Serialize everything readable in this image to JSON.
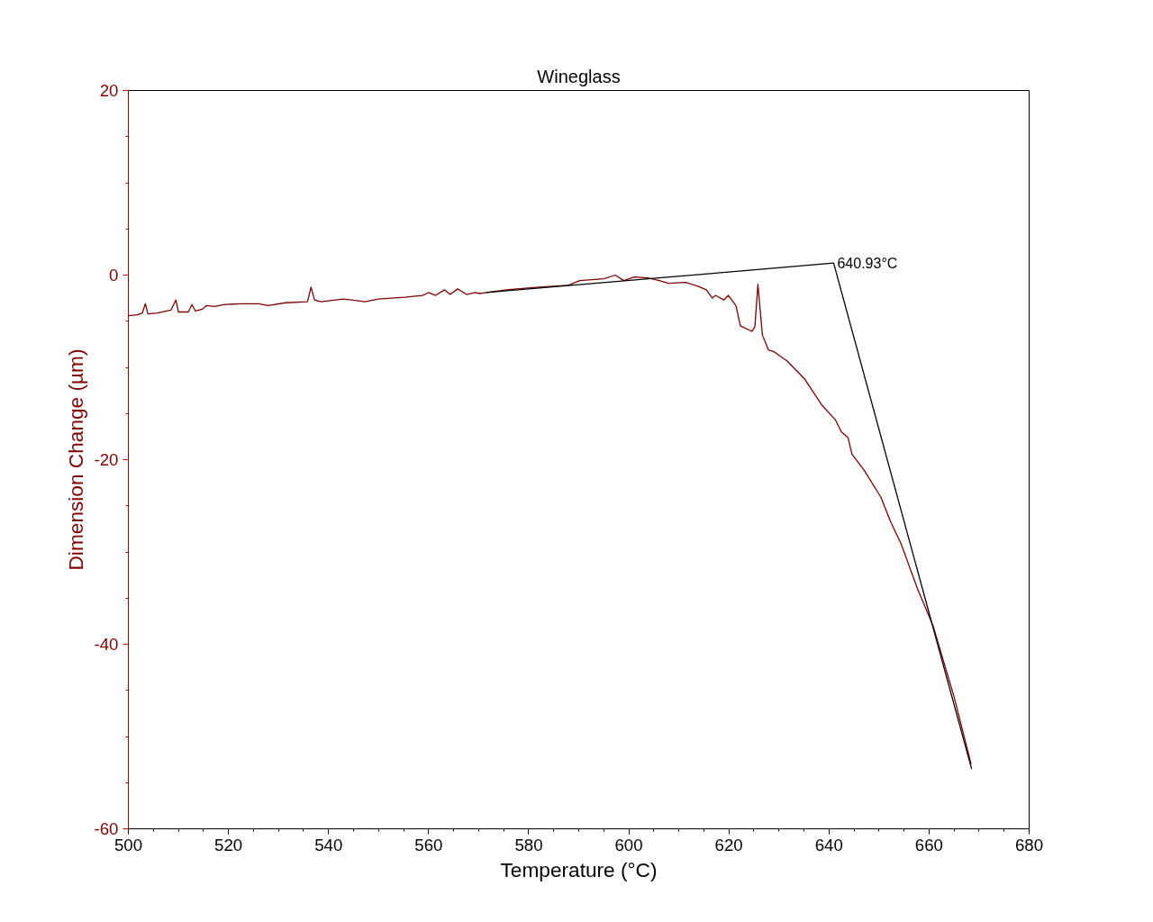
{
  "chart_data": {
    "type": "line",
    "title": "Wineglass",
    "xlabel": "Temperature (°C)",
    "ylabel": "Dimension Change (µm)",
    "xlim": [
      500,
      680
    ],
    "ylim": [
      -60,
      20
    ],
    "xticks": [
      500,
      {
        "value": 505,
        "label": null
      },
      {
        "value": 510,
        "label": null
      },
      {
        "value": 515,
        "label": null
      },
      520,
      {
        "value": 525,
        "label": null
      },
      {
        "value": 530,
        "label": null
      },
      {
        "value": 535,
        "label": null
      },
      540,
      {
        "value": 545,
        "label": null
      },
      {
        "value": 550,
        "label": null
      },
      {
        "value": 555,
        "label": null
      },
      560,
      {
        "value": 565,
        "label": null
      },
      {
        "value": 570,
        "label": null
      },
      {
        "value": 575,
        "label": null
      },
      580,
      {
        "value": 585,
        "label": null
      },
      {
        "value": 590,
        "label": null
      },
      {
        "value": 595,
        "label": null
      },
      600,
      {
        "value": 605,
        "label": null
      },
      {
        "value": 610,
        "label": null
      },
      {
        "value": 615,
        "label": null
      },
      620,
      {
        "value": 625,
        "label": null
      },
      {
        "value": 630,
        "label": null
      },
      {
        "value": 635,
        "label": null
      },
      640,
      {
        "value": 645,
        "label": null
      },
      {
        "value": 650,
        "label": null
      },
      {
        "value": 655,
        "label": null
      },
      660,
      {
        "value": 665,
        "label": null
      },
      {
        "value": 670,
        "label": null
      },
      {
        "value": 675,
        "label": null
      },
      680
    ],
    "yticks": [
      -60,
      {
        "value": -55,
        "label": null
      },
      {
        "value": -50,
        "label": null
      },
      {
        "value": -45,
        "label": null
      },
      -40,
      {
        "value": -35,
        "label": null
      },
      {
        "value": -30,
        "label": null
      },
      {
        "value": -25,
        "label": null
      },
      -20,
      {
        "value": -15,
        "label": null
      },
      {
        "value": -10,
        "label": null
      },
      {
        "value": -5,
        "label": null
      },
      0,
      {
        "value": 5,
        "label": null
      },
      {
        "value": 10,
        "label": null
      },
      {
        "value": 15,
        "label": null
      },
      20
    ],
    "grid": false,
    "line_style": "solid",
    "marker": "none",
    "series": [
      {
        "color": "#800000",
        "x": [
          500,
          501.8,
          502.8,
          503.4,
          503.9,
          505.8,
          508.5,
          509.5,
          510,
          512,
          512.7,
          513.4,
          514.8,
          515.6,
          517.3,
          519,
          522.6,
          526.1,
          527.9,
          531.4,
          535.8,
          536.5,
          537.2,
          538.5,
          542.9,
          544.6,
          547.3,
          550,
          555.2,
          558.8,
          560,
          561.4,
          563.2,
          564.3,
          565.8,
          567.6,
          569.3,
          570.2,
          571.6,
          575.5,
          582,
          587.9,
          590.2,
          595,
          597.3,
          599,
          601.1,
          603.8,
          606.1,
          607.9,
          611.4,
          613.8,
          615.5,
          616.7,
          617.3,
          619,
          619.9,
          621.4,
          622.3,
          624.6,
          625.2,
          625.8,
          626.7,
          627.9,
          629,
          630.8,
          631.6,
          635.2,
          638.6,
          641.3,
          642.5,
          643.8,
          644.6,
          647.1,
          650.4,
          652.3,
          654.4,
          657.7,
          660.8,
          662.6,
          665,
          668.4
        ],
        "values": [
          -4.4,
          -4.3,
          -4.1,
          -3.1,
          -4.2,
          -4.1,
          -3.8,
          -2.7,
          -4.0,
          -4.0,
          -3.2,
          -3.9,
          -3.7,
          -3.3,
          -3.4,
          -3.2,
          -3.1,
          -3.1,
          -3.3,
          -3.0,
          -2.9,
          -1.3,
          -2.7,
          -2.9,
          -2.6,
          -2.7,
          -2.9,
          -2.6,
          -2.4,
          -2.2,
          -1.9,
          -2.2,
          -1.6,
          -2.1,
          -1.5,
          -2.1,
          -1.9,
          -2.0,
          -1.9,
          -1.6,
          -1.3,
          -1.1,
          -0.6,
          -0.4,
          0.0,
          -0.6,
          -0.2,
          -0.3,
          -0.6,
          -0.9,
          -0.8,
          -1.2,
          -1.6,
          -2.5,
          -2.2,
          -2.7,
          -2.2,
          -3.3,
          -5.5,
          -6.1,
          -5.6,
          -1.0,
          -6.5,
          -8.1,
          -8.3,
          -9.0,
          -9.3,
          -11.3,
          -14.1,
          -15.7,
          -17.0,
          -17.6,
          -19.4,
          -21.2,
          -24.1,
          -26.7,
          -29.1,
          -34.0,
          -38.0,
          -41.3,
          -45.7,
          -53.0
        ]
      },
      {
        "color": "#000000",
        "x": [
          571.5,
          640.93,
          668.5
        ],
        "values": [
          -1.9,
          1.3,
          -53.5
        ]
      }
    ],
    "annotations": [
      {
        "text": "640.93°C",
        "x": 640.93,
        "y": 1.3
      }
    ]
  }
}
